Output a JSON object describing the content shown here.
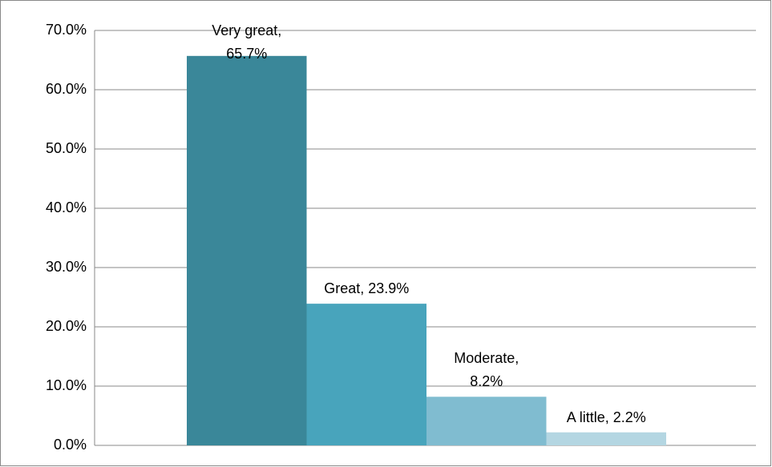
{
  "chart_data": {
    "type": "bar",
    "values": [
      65.7,
      23.9,
      8.2,
      2.2
    ],
    "value_labels": [
      "Very great, 65.7%",
      "Great, 23.9%",
      "Moderate, 8.2%",
      "A little, 2.2%"
    ],
    "colors": [
      "#3a8799",
      "#48a4bc",
      "#80bcd0",
      "#b4d6e2"
    ],
    "ylim": [
      0,
      70
    ],
    "yticks": [
      {
        "value": 0,
        "label": "0.0%"
      },
      {
        "value": 10,
        "label": "10.0%"
      },
      {
        "value": 20,
        "label": "20.0%"
      },
      {
        "value": 30,
        "label": "30.0%"
      },
      {
        "value": 40,
        "label": "40.0%"
      },
      {
        "value": 50,
        "label": "50.0%"
      },
      {
        "value": 60,
        "label": "60.0%"
      },
      {
        "value": 70,
        "label": "70.0%"
      }
    ],
    "grid": true
  }
}
